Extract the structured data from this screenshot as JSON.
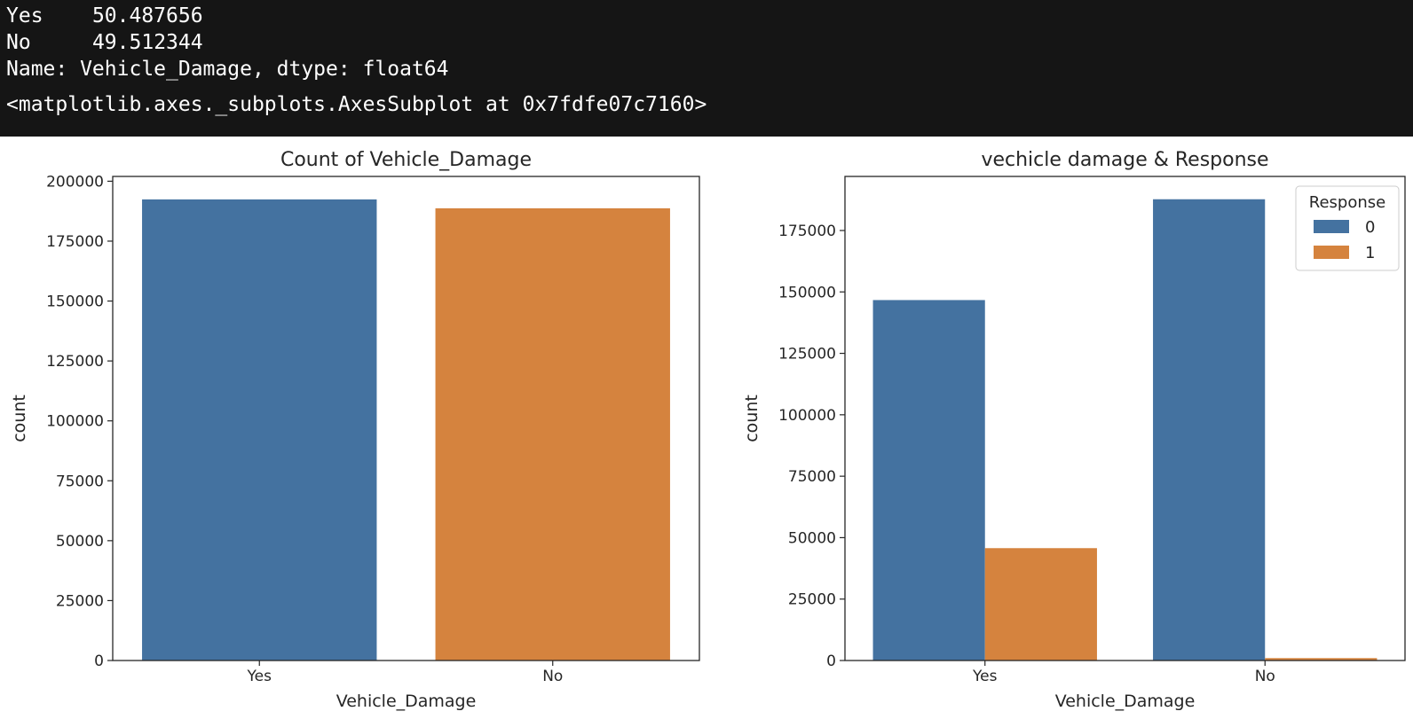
{
  "console": {
    "series_lines": [
      {
        "label": "Yes",
        "value": "50.487656"
      },
      {
        "label": "No",
        "value": "49.512344"
      }
    ],
    "name_line": "Name: Vehicle_Damage, dtype: float64",
    "repr_line": "<matplotlib.axes._subplots.AxesSubplot at 0x7fdfe07c7160>"
  },
  "colors": {
    "blue": "#4472a0",
    "orange": "#d5833e",
    "axis": "#262626"
  },
  "chart_data": [
    {
      "type": "bar",
      "title": "Count of Vehicle_Damage",
      "xlabel": "Vehicle_Damage",
      "ylabel": "count",
      "categories": [
        "Yes",
        "No"
      ],
      "values": [
        192413,
        188696
      ],
      "bar_colors": [
        "#4472a0",
        "#d5833e"
      ],
      "yticks": [
        0,
        25000,
        50000,
        75000,
        100000,
        125000,
        150000,
        175000,
        200000
      ],
      "ylim": [
        0,
        202000
      ],
      "grid": false
    },
    {
      "type": "bar",
      "title": "vechicle damage & Response",
      "xlabel": "Vehicle_Damage",
      "ylabel": "count",
      "categories": [
        "Yes",
        "No"
      ],
      "series": [
        {
          "name": "0",
          "values": [
            146685,
            187714
          ],
          "color": "#4472a0"
        },
        {
          "name": "1",
          "values": [
            45728,
            982
          ],
          "color": "#d5833e"
        }
      ],
      "legend": {
        "title": "Response",
        "position": "top-right"
      },
      "yticks": [
        0,
        25000,
        50000,
        75000,
        100000,
        125000,
        150000,
        175000
      ],
      "ylim": [
        0,
        197000
      ],
      "grid": false
    }
  ]
}
